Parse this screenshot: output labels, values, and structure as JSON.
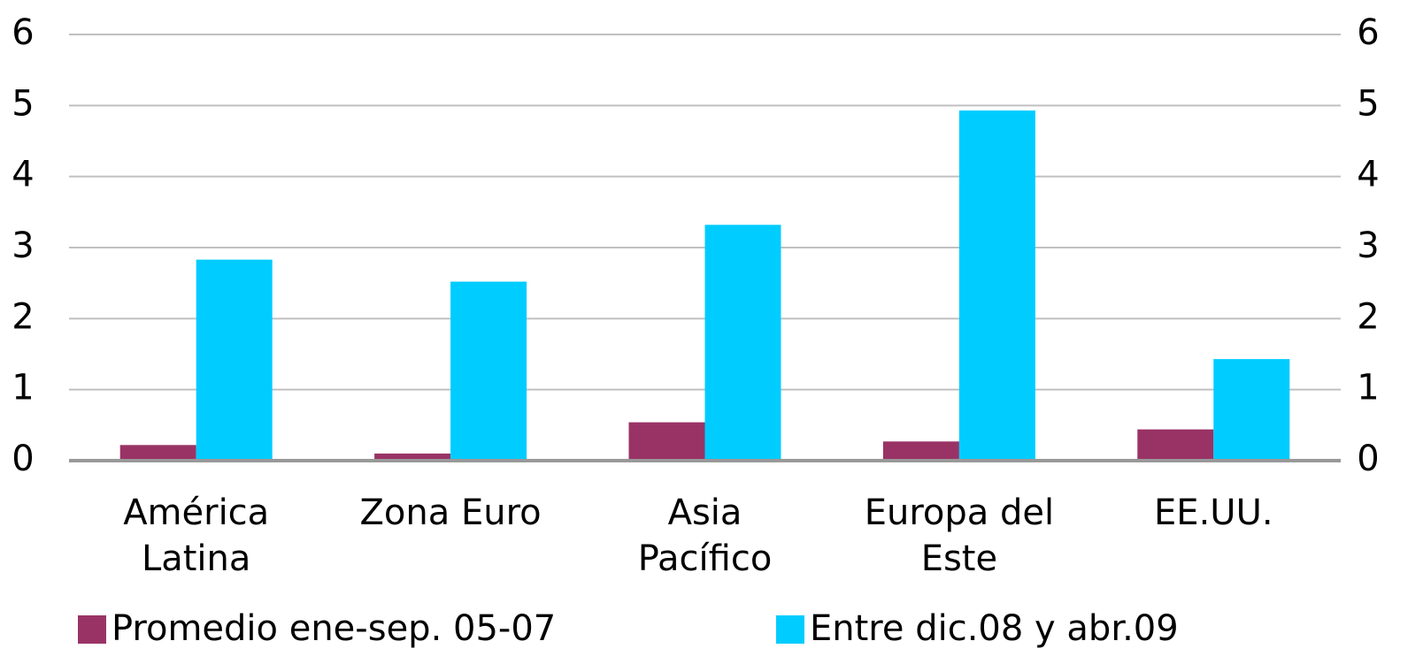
{
  "chart_data": {
    "type": "bar",
    "categories": [
      "América Latina",
      "Zona Euro",
      "Asia Pacífico",
      "Europa del Este",
      "EE.UU."
    ],
    "series": [
      {
        "name": "Promedio ene-sep. 05-07",
        "color": "#993366",
        "values": [
          0.22,
          0.1,
          0.54,
          0.27,
          0.44
        ]
      },
      {
        "name": "Entre dic.08 y abr.09",
        "color": "#00ccff",
        "values": [
          2.83,
          2.52,
          3.32,
          4.93,
          1.43
        ]
      }
    ],
    "ylim": [
      0,
      6
    ],
    "yticks": [
      0,
      1,
      2,
      3,
      4,
      5,
      6
    ],
    "y2lim": [
      0,
      6
    ],
    "y2ticks": [
      0,
      1,
      2,
      3,
      4,
      5,
      6
    ],
    "grid": true
  }
}
